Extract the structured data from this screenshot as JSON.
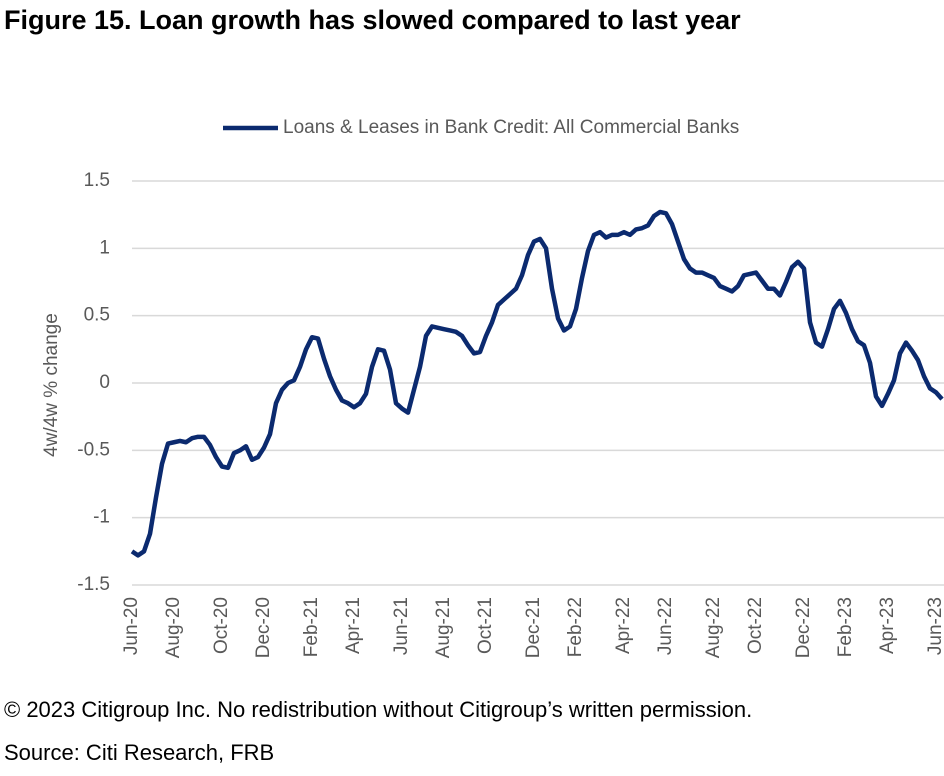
{
  "chart_data": {
    "type": "line",
    "title": "Figure 15. Loan growth has slowed compared to last year",
    "y_label": "4w/4w % change",
    "copyright": "© 2023 Citigroup Inc. No redistribution without Citigroup’s written permission.",
    "source": "Source: Citi Research, FRB",
    "legend": "top",
    "grid": true,
    "ylim": [
      -1.5,
      1.5
    ],
    "yticks": [
      -1.5,
      -1,
      -0.5,
      0,
      0.5,
      1,
      1.5
    ],
    "categories": [
      "Jun-20",
      null,
      null,
      null,
      null,
      null,
      null,
      "Aug-20",
      null,
      null,
      null,
      null,
      null,
      null,
      null,
      "Oct-20",
      null,
      null,
      null,
      null,
      null,
      null,
      "Dec-20",
      null,
      null,
      null,
      null,
      null,
      null,
      null,
      "Feb-21",
      null,
      null,
      null,
      null,
      null,
      null,
      "Apr-21",
      null,
      null,
      null,
      null,
      null,
      null,
      null,
      "Jun-21",
      null,
      null,
      null,
      null,
      null,
      null,
      "Aug-21",
      null,
      null,
      null,
      null,
      null,
      null,
      "Oct-21",
      null,
      null,
      null,
      null,
      null,
      null,
      null,
      "Dec-21",
      null,
      null,
      null,
      null,
      null,
      null,
      "Feb-22",
      null,
      null,
      null,
      null,
      null,
      null,
      null,
      "Apr-22",
      null,
      null,
      null,
      null,
      null,
      null,
      "Jun-22",
      null,
      null,
      null,
      null,
      null,
      null,
      null,
      "Aug-22",
      null,
      null,
      null,
      null,
      null,
      null,
      "Oct-22",
      null,
      null,
      null,
      null,
      null,
      null,
      null,
      "Dec-22",
      null,
      null,
      null,
      null,
      null,
      null,
      "Feb-23",
      null,
      null,
      null,
      null,
      null,
      null,
      "Apr-23",
      null,
      null,
      null,
      null,
      null,
      null,
      null,
      "Jun-23",
      null
    ],
    "series": [
      {
        "name": "Loans & Leases in Bank Credit: All Commercial Banks",
        "color": "#0b2a6f",
        "values": [
          -1.25,
          -1.28,
          -1.25,
          -1.12,
          -0.85,
          -0.6,
          -0.45,
          -0.44,
          -0.43,
          -0.44,
          -0.41,
          -0.4,
          -0.4,
          -0.46,
          -0.55,
          -0.62,
          -0.63,
          -0.52,
          -0.5,
          -0.47,
          -0.57,
          -0.55,
          -0.48,
          -0.38,
          -0.15,
          -0.05,
          0.0,
          0.02,
          0.12,
          0.25,
          0.34,
          0.33,
          0.18,
          0.05,
          -0.05,
          -0.13,
          -0.15,
          -0.18,
          -0.15,
          -0.08,
          0.12,
          0.25,
          0.24,
          0.1,
          -0.15,
          -0.19,
          -0.22,
          -0.05,
          0.12,
          0.35,
          0.42,
          0.41,
          0.4,
          0.39,
          0.38,
          0.35,
          0.28,
          0.22,
          0.23,
          0.35,
          0.45,
          0.58,
          0.62,
          0.66,
          0.7,
          0.8,
          0.95,
          1.05,
          1.07,
          1.0,
          0.7,
          0.48,
          0.39,
          0.42,
          0.55,
          0.78,
          0.98,
          1.1,
          1.12,
          1.08,
          1.1,
          1.1,
          1.12,
          1.1,
          1.14,
          1.15,
          1.17,
          1.24,
          1.27,
          1.26,
          1.18,
          1.05,
          0.92,
          0.85,
          0.82,
          0.82,
          0.8,
          0.78,
          0.72,
          0.7,
          0.68,
          0.72,
          0.8,
          0.81,
          0.82,
          0.76,
          0.7,
          0.7,
          0.65,
          0.75,
          0.86,
          0.9,
          0.85,
          0.45,
          0.3,
          0.27,
          0.4,
          0.55,
          0.61,
          0.52,
          0.4,
          0.31,
          0.28,
          0.15,
          -0.1,
          -0.17,
          -0.08,
          0.02,
          0.22,
          0.3,
          0.24,
          0.17,
          0.05,
          -0.04,
          -0.07,
          -0.12
        ]
      }
    ]
  }
}
